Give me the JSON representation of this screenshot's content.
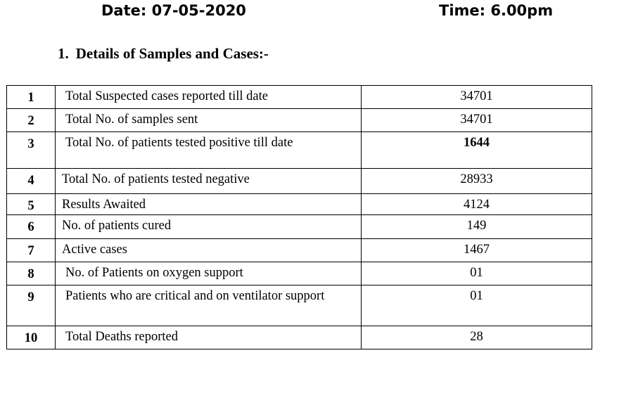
{
  "header": {
    "date": "Date: 07-05-2020",
    "time": "Time: 6.00pm"
  },
  "section": {
    "number": "1.",
    "title": "Details of Samples and Cases:-"
  },
  "rows": [
    {
      "sn": "1",
      "desc": "Total Suspected cases reported till date",
      "value": "34701"
    },
    {
      "sn": "2",
      "desc": "Total No. of samples sent",
      "value": "34701"
    },
    {
      "sn": "3",
      "desc": "Total No. of patients tested positive till date",
      "value": "1644"
    },
    {
      "sn": "4",
      "desc": "Total No. of patients tested negative",
      "value": "28933"
    },
    {
      "sn": "5",
      "desc": "Results Awaited",
      "value": "4124"
    },
    {
      "sn": "6",
      "desc": "No. of patients cured",
      "value": "149"
    },
    {
      "sn": "7",
      "desc": "Active cases",
      "value": "1467"
    },
    {
      "sn": "8",
      "desc": "No. of Patients on oxygen support",
      "value": "01"
    },
    {
      "sn": "9",
      "desc": "Patients who are critical and on ventilator support",
      "value": "01"
    },
    {
      "sn": "10",
      "desc": "Total Deaths reported",
      "value": "28"
    }
  ]
}
